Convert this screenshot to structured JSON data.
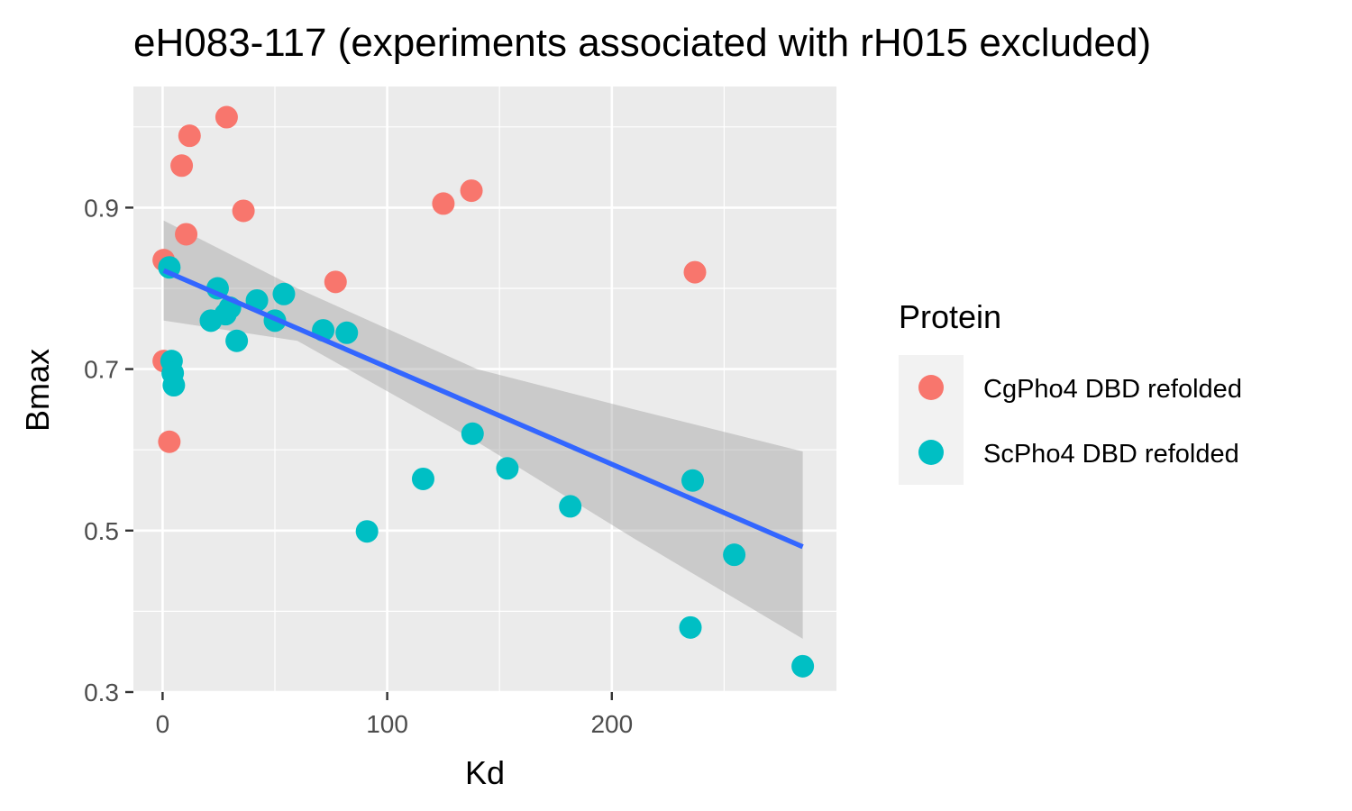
{
  "chart_data": {
    "type": "scatter",
    "title": "eH083-117 (experiments associated with rH015 excluded)",
    "xlabel": "Kd",
    "ylabel": "Bmax",
    "xlim": [
      -13,
      300
    ],
    "ylim": [
      0.3,
      1.05
    ],
    "x_ticks": [
      0,
      100,
      200
    ],
    "y_ticks": [
      0.3,
      0.5,
      0.7,
      0.9
    ],
    "x_tick_labels": [
      "0",
      "100",
      "200"
    ],
    "y_tick_labels": [
      "0.3",
      "0.5",
      "0.7",
      "0.9"
    ],
    "grid": true,
    "legend": {
      "title": "Protein",
      "position": "right"
    },
    "series": [
      {
        "name": "CgPho4 DBD refolded",
        "color": "#F8766D",
        "points": [
          {
            "x": 0.5,
            "y": 0.835
          },
          {
            "x": 0.5,
            "y": 0.71
          },
          {
            "x": 3,
            "y": 0.61
          },
          {
            "x": 8.5,
            "y": 0.952
          },
          {
            "x": 10.5,
            "y": 0.867
          },
          {
            "x": 12,
            "y": 0.989
          },
          {
            "x": 28.5,
            "y": 1.012
          },
          {
            "x": 36,
            "y": 0.896
          },
          {
            "x": 77,
            "y": 0.808
          },
          {
            "x": 125,
            "y": 0.905
          },
          {
            "x": 137.5,
            "y": 0.921
          },
          {
            "x": 237,
            "y": 0.82
          }
        ]
      },
      {
        "name": "ScPho4 DBD refolded",
        "color": "#00BFC4",
        "points": [
          {
            "x": 3,
            "y": 0.826
          },
          {
            "x": 4,
            "y": 0.71
          },
          {
            "x": 4.5,
            "y": 0.695
          },
          {
            "x": 5,
            "y": 0.68
          },
          {
            "x": 21.5,
            "y": 0.76
          },
          {
            "x": 24.5,
            "y": 0.8
          },
          {
            "x": 28,
            "y": 0.768
          },
          {
            "x": 30,
            "y": 0.776
          },
          {
            "x": 33,
            "y": 0.735
          },
          {
            "x": 42,
            "y": 0.785
          },
          {
            "x": 50,
            "y": 0.76
          },
          {
            "x": 54,
            "y": 0.793
          },
          {
            "x": 71.5,
            "y": 0.748
          },
          {
            "x": 82,
            "y": 0.745
          },
          {
            "x": 91,
            "y": 0.499
          },
          {
            "x": 116,
            "y": 0.564
          },
          {
            "x": 138,
            "y": 0.62
          },
          {
            "x": 153.5,
            "y": 0.577
          },
          {
            "x": 181.5,
            "y": 0.53
          },
          {
            "x": 235,
            "y": 0.38
          },
          {
            "x": 236,
            "y": 0.562
          },
          {
            "x": 254.5,
            "y": 0.47
          },
          {
            "x": 285,
            "y": 0.332
          }
        ]
      }
    ],
    "fit": {
      "method": "linear",
      "color": "#3366FF",
      "line": [
        {
          "x": 0.5,
          "y": 0.822
        },
        {
          "x": 285,
          "y": 0.48
        }
      ],
      "ci_upper": [
        {
          "x": 0.5,
          "y": 0.884
        },
        {
          "x": 60,
          "y": 0.8
        },
        {
          "x": 140,
          "y": 0.7
        },
        {
          "x": 210,
          "y": 0.65
        },
        {
          "x": 285,
          "y": 0.598
        }
      ],
      "ci_lower": [
        {
          "x": 0.5,
          "y": 0.76
        },
        {
          "x": 60,
          "y": 0.735
        },
        {
          "x": 140,
          "y": 0.61
        },
        {
          "x": 210,
          "y": 0.49
        },
        {
          "x": 285,
          "y": 0.366
        }
      ]
    }
  }
}
